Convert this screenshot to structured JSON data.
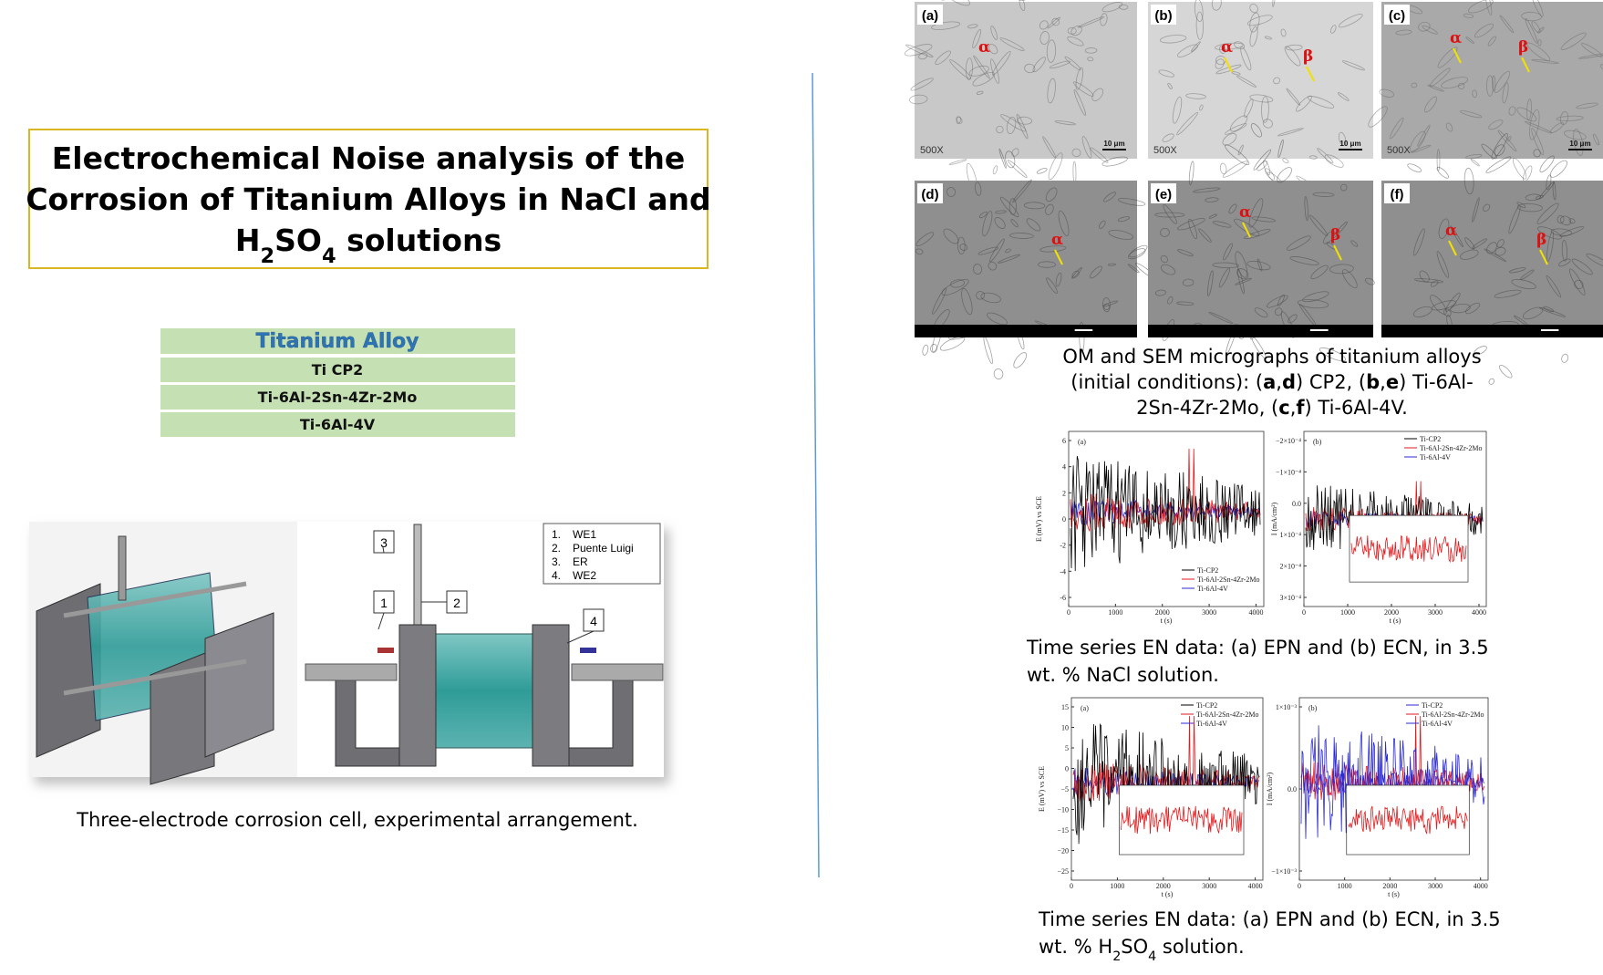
{
  "title": {
    "lines": [
      [
        {
          "text": "Electrochemical Noise analysis of the"
        }
      ],
      [
        {
          "text": "Corrosion of Titanium Alloys in NaCl and"
        }
      ],
      [
        {
          "text": "H"
        },
        {
          "text": "2",
          "sub": true
        },
        {
          "text": "SO"
        },
        {
          "text": "4",
          "sub": true
        },
        {
          "text": " solutions"
        }
      ]
    ]
  },
  "alloy_table": {
    "header": "Titanium Alloy",
    "rows": [
      "Ti CP2",
      "Ti-6Al-2Sn-4Zr-2Mo",
      "Ti-6Al-4V"
    ]
  },
  "cell_figure": {
    "callouts": [
      "3",
      "1",
      "2",
      "4"
    ],
    "legend": [
      {
        "number": "1.",
        "label": "WE1"
      },
      {
        "number": "2.",
        "label": "Puente Luigi"
      },
      {
        "number": "3.",
        "label": "ER"
      },
      {
        "number": "4.",
        "label": "WE2"
      }
    ],
    "caption": "Three-electrode corrosion cell, experimental arrangement."
  },
  "micrographs": {
    "panels": [
      {
        "label": "(a)",
        "phases": [
          "α"
        ],
        "magnification": "500X",
        "scale": "10 μm"
      },
      {
        "label": "(b)",
        "phases": [
          "α",
          "β"
        ],
        "magnification": "500X",
        "scale": "10 μm"
      },
      {
        "label": "(c)",
        "phases": [
          "α",
          "β"
        ],
        "magnification": "500X",
        "scale": "10 μm"
      },
      {
        "label": "(d)",
        "phases": [
          "α"
        ]
      },
      {
        "label": "(e)",
        "phases": [
          "α",
          "β"
        ]
      },
      {
        "label": "(f)",
        "phases": [
          "α",
          "β"
        ]
      }
    ],
    "caption": {
      "lines": [
        [
          {
            "text": "OM and SEM micrographs of titanium alloys"
          }
        ],
        [
          {
            "text": "(initial conditions): ("
          },
          {
            "text": "a",
            "bold": true
          },
          {
            "text": ","
          },
          {
            "text": "d",
            "bold": true
          },
          {
            "text": ") CP2, ("
          },
          {
            "text": "b",
            "bold": true
          },
          {
            "text": ","
          },
          {
            "text": "e",
            "bold": true
          },
          {
            "text": ") Ti-6Al-"
          }
        ],
        [
          {
            "text": "2Sn-4Zr-2Mo, ("
          },
          {
            "text": "c",
            "bold": true
          },
          {
            "text": ","
          },
          {
            "text": "f",
            "bold": true
          },
          {
            "text": ") Ti-6Al-4V."
          }
        ]
      ]
    }
  },
  "en_nacl": {
    "panels": [
      {
        "label": "(a)",
        "ylabel": "E (mV) vs SCE",
        "xlabel": "t (s)",
        "yticks": [
          "6",
          "4",
          "2",
          "0",
          "-2",
          "-4",
          "-6"
        ],
        "xticks": [
          "0",
          "1000",
          "2000",
          "3000",
          "4000"
        ],
        "legend": "lower-right",
        "inset": false,
        "series": [
          {
            "name": "Ti-CP2",
            "color": "#000000"
          },
          {
            "name": "Ti-6Al-2Sn-4Zr-2Mo",
            "color": "#e3191c"
          },
          {
            "name": "Ti-6Al-4V",
            "color": "#2a2ad6"
          }
        ]
      },
      {
        "label": "(b)",
        "ylabel": "I (mA/cm²)",
        "xlabel": "t (s)",
        "yticks": [
          "−2×10⁻⁴",
          "−1×10⁻⁴",
          "0.0",
          "1×10⁻⁴",
          "2×10⁻⁴",
          "3×10⁻⁴"
        ],
        "xticks": [
          "0",
          "1000",
          "2000",
          "3000",
          "4000"
        ],
        "legend": "upper-right",
        "inset": true,
        "series": [
          {
            "name": "Ti-CP2",
            "color": "#000000"
          },
          {
            "name": "Ti-6Al-2Sn-4Zr-2Mo",
            "color": "#e3191c"
          },
          {
            "name": "Ti-6Al-4V",
            "color": "#2a2ad6"
          }
        ]
      }
    ],
    "caption": {
      "lines": [
        [
          {
            "text": "Time series EN data: (a) EPN and (b) ECN, in 3.5"
          }
        ],
        [
          {
            "text": "wt. % NaCl solution."
          }
        ]
      ]
    }
  },
  "en_h2so4": {
    "panels": [
      {
        "label": "(a)",
        "ylabel": "E (mV) vs SCE",
        "xlabel": "t (s)",
        "yticks": [
          "15",
          "10",
          "5",
          "0",
          "−5",
          "−10",
          "−15",
          "−20",
          "−25"
        ],
        "xticks": [
          "0",
          "1000",
          "2000",
          "3000",
          "4000"
        ],
        "legend": "upper-right",
        "inset": true,
        "series": [
          {
            "name": "Ti-CP2",
            "color": "#000000"
          },
          {
            "name": "Ti-6Al-2Sn-4Zr-2Mo",
            "color": "#e3191c"
          },
          {
            "name": "Ti-6Al-4V",
            "color": "#2a2ad6"
          }
        ]
      },
      {
        "label": "(b)",
        "ylabel": "I (mA/cm²)",
        "xlabel": "t (s)",
        "yticks": [
          "1×10⁻³",
          "0.0",
          "−1×10⁻³"
        ],
        "xticks": [
          "0",
          "1000",
          "2000",
          "3000",
          "4000"
        ],
        "legend": "upper-right",
        "inset": true,
        "series": [
          {
            "name": "Ti-CP2",
            "color": "#2a2ad6"
          },
          {
            "name": "Ti-6Al-2Sn-4Zr-2Mo",
            "color": "#e3191c"
          },
          {
            "name": "Ti-6Al-4V",
            "color": "#2a2ad6"
          }
        ]
      }
    ],
    "caption": {
      "lines": [
        [
          {
            "text": "Time series EN data: (a) EPN and (b) ECN, in 3.5"
          }
        ],
        [
          {
            "text": "wt. % H"
          },
          {
            "text": "2",
            "sub": true
          },
          {
            "text": "SO"
          },
          {
            "text": "4",
            "sub": true
          },
          {
            "text": " solution."
          }
        ]
      ]
    }
  }
}
